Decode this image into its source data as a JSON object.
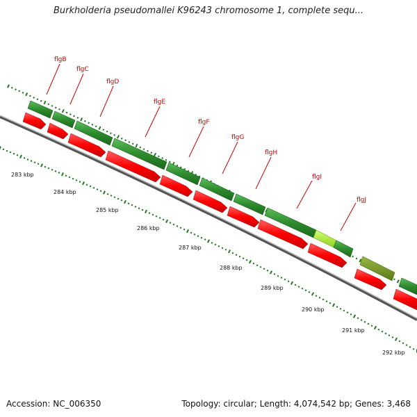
{
  "title": "Burkholderia pseudomallei K96243 chromosome 1, complete sequ...",
  "footer": {
    "accession": "Accession: NC_006350",
    "summary": "Topology: circular; Length: 4,074,542 bp; Genes: 3,468"
  },
  "colors": {
    "gene_green": "#2e8b2e",
    "gene_highlight": "#a8e83a",
    "gene_olive": "#6b8e23",
    "cds_red": "#ff0000",
    "backbone": "#888888",
    "label_red": "#cc0000",
    "tick_green": "#1f7a1f"
  },
  "genes": [
    {
      "name": "flgB"
    },
    {
      "name": "flgC"
    },
    {
      "name": "flgD"
    },
    {
      "name": "flgE"
    },
    {
      "name": "flgF"
    },
    {
      "name": "flgG"
    },
    {
      "name": "flgH"
    },
    {
      "name": "flgI"
    },
    {
      "name": "flgJ"
    }
  ],
  "scale": [
    {
      "label": "283 kbp"
    },
    {
      "label": "284 kbp"
    },
    {
      "label": "285 kbp"
    },
    {
      "label": "286 kbp"
    },
    {
      "label": "287 kbp"
    },
    {
      "label": "288 kbp"
    },
    {
      "label": "289 kbp"
    },
    {
      "label": "290 kbp"
    },
    {
      "label": "291 kbp"
    },
    {
      "label": "292 kbp"
    }
  ]
}
